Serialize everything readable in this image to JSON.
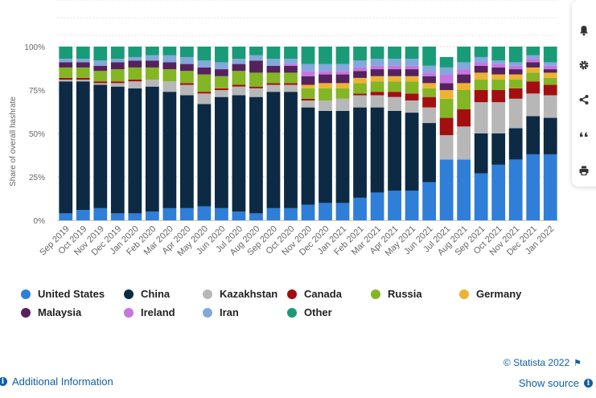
{
  "chart_data": {
    "type": "bar",
    "stacked": true,
    "ylabel": "Share of overall hashrate",
    "xlabel": "",
    "ylim": [
      0,
      100
    ],
    "y_ticks": [
      "0%",
      "25%",
      "50%",
      "75%",
      "100%"
    ],
    "grid": true,
    "legend_position": "bottom",
    "categories": [
      "Sep 2019",
      "Oct 2019",
      "Nov 2019",
      "Dec 2019",
      "Jan 2020",
      "Feb 2020",
      "Mar 2020",
      "Apr 2020",
      "May 2020",
      "Jun 2020",
      "Jul 2020",
      "Aug 2020",
      "Sep 2020",
      "Oct 2020",
      "Nov 2020",
      "Dec 2020",
      "Jan 2021",
      "Feb 2021",
      "Mar 2021",
      "Apr 2021",
      "May 2021",
      "Jun 2021",
      "Jul 2021",
      "Aug 2021",
      "Sep 2021",
      "Oct 2021",
      "Nov 2021",
      "Dec 2021",
      "Jan 2022"
    ],
    "series": [
      {
        "name": "United States",
        "color": "#2f7ed8",
        "values": [
          4,
          6,
          7,
          4,
          4,
          5,
          7,
          7,
          8,
          7,
          5,
          4,
          7,
          7,
          9,
          10,
          10,
          13,
          16,
          17,
          17,
          22,
          35,
          35,
          27,
          32,
          35,
          38,
          38
        ]
      },
      {
        "name": "China",
        "color": "#0d2a45",
        "values": [
          76,
          74,
          71,
          73,
          72,
          72,
          67,
          65,
          59,
          64,
          67,
          67,
          67,
          67,
          56,
          53,
          53,
          52,
          49,
          46,
          45,
          34,
          0,
          0,
          23,
          18,
          18,
          22,
          21
        ]
      },
      {
        "name": "Kazakhstan",
        "color": "#b7b7b7",
        "values": [
          1,
          1,
          1,
          2,
          4,
          4,
          6,
          6,
          6,
          4,
          5,
          5,
          4,
          4,
          4,
          6,
          7,
          7,
          7,
          8,
          7,
          9,
          14,
          19,
          18,
          18,
          17,
          13,
          13
        ]
      },
      {
        "name": "Canada",
        "color": "#a30f0f",
        "values": [
          1,
          1,
          1,
          1,
          1,
          0,
          0,
          1,
          1,
          1,
          1,
          1,
          1,
          1,
          1,
          0,
          0,
          1,
          2,
          3,
          4,
          6,
          10,
          10,
          7,
          7,
          6,
          7,
          6
        ]
      },
      {
        "name": "Russia",
        "color": "#84b525",
        "values": [
          6,
          6,
          6,
          7,
          7,
          7,
          7,
          7,
          10,
          7,
          8,
          8,
          6,
          6,
          6,
          7,
          6,
          6,
          6,
          6,
          7,
          5,
          11,
          11,
          6,
          6,
          5,
          5,
          4
        ]
      },
      {
        "name": "Germany",
        "color": "#eeb233",
        "values": [
          0,
          0,
          0,
          0,
          0,
          0,
          0,
          0,
          0,
          0,
          0,
          0,
          0,
          0,
          2,
          3,
          3,
          3,
          3,
          3,
          3,
          3,
          5,
          4,
          4,
          3,
          3,
          3,
          3
        ]
      },
      {
        "name": "Malaysia",
        "color": "#55225d",
        "values": [
          3,
          3,
          3,
          4,
          4,
          4,
          4,
          4,
          4,
          4,
          4,
          7,
          4,
          4,
          5,
          5,
          5,
          4,
          4,
          4,
          4,
          4,
          4,
          5,
          4,
          4,
          3,
          3,
          2
        ]
      },
      {
        "name": "Ireland",
        "color": "#c676e0",
        "values": [
          0,
          0,
          0,
          0,
          0,
          0,
          0,
          0,
          0,
          0,
          0,
          0,
          0,
          1,
          3,
          2,
          2,
          2,
          2,
          2,
          2,
          2,
          5,
          3,
          2,
          2,
          2,
          2,
          2
        ]
      },
      {
        "name": "Iran",
        "color": "#82a8dc",
        "values": [
          2,
          2,
          3,
          2,
          2,
          3,
          4,
          4,
          4,
          4,
          3,
          3,
          4,
          3,
          4,
          4,
          4,
          4,
          4,
          4,
          4,
          4,
          4,
          4,
          3,
          2,
          2,
          2,
          2
        ]
      },
      {
        "name": "Other",
        "color": "#1a9b77",
        "values": [
          7,
          7,
          8,
          7,
          6,
          5,
          5,
          6,
          8,
          9,
          7,
          5,
          7,
          7,
          10,
          10,
          10,
          8,
          7,
          7,
          7,
          11,
          6,
          9,
          6,
          8,
          9,
          5,
          9
        ]
      }
    ]
  },
  "credits": "© Statista 2022",
  "footer": {
    "additional_info": "Additional Information",
    "show_source": "Show source"
  },
  "icons": {
    "credits_flag": "flag-icon",
    "info": "info-icon",
    "toolbar": [
      "bell-icon",
      "gear-icon",
      "share-icon",
      "quote-icon",
      "print-icon"
    ]
  }
}
